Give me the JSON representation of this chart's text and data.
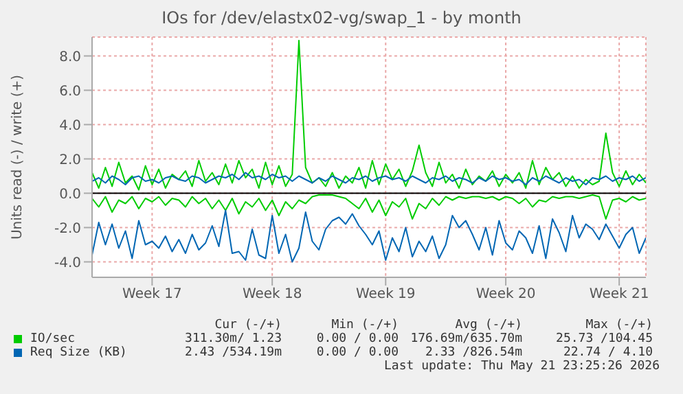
{
  "chart_data": {
    "type": "line",
    "title": "IOs for /dev/elastx02-vg/swap_1 - by month",
    "ylabel": "Units read (-) / write (+)",
    "categories": [
      null,
      null,
      null,
      null,
      null,
      null,
      null,
      null,
      null,
      "Week 17",
      null,
      null,
      null,
      null,
      null,
      null,
      null,
      null,
      null,
      null,
      null,
      null,
      null,
      null,
      null,
      null,
      null,
      "Week 18",
      null,
      null,
      null,
      null,
      null,
      null,
      null,
      null,
      null,
      null,
      null,
      null,
      null,
      null,
      null,
      null,
      "Week 19",
      null,
      null,
      null,
      null,
      null,
      null,
      null,
      null,
      null,
      null,
      null,
      null,
      null,
      null,
      null,
      null,
      null,
      "Week 20",
      null,
      null,
      null,
      null,
      null,
      null,
      null,
      null,
      null,
      null,
      null,
      null,
      null,
      null,
      null,
      null,
      "Week 21",
      null,
      null,
      null,
      null
    ],
    "ylim": [
      -4.9,
      9.1
    ],
    "yticks": [
      {
        "value": -4,
        "label": "-4.0"
      },
      {
        "value": -2,
        "label": "-2.0"
      },
      {
        "value": 0,
        "label": "0.0"
      },
      {
        "value": 2,
        "label": "2.0"
      },
      {
        "value": 4,
        "label": "4.0"
      },
      {
        "value": 6,
        "label": "6.0"
      },
      {
        "value": 8,
        "label": "8.0"
      }
    ],
    "grid": true,
    "legend": "bottom left",
    "ref_lines": [
      {
        "axis": "y",
        "value": 0,
        "color": "#000000"
      }
    ],
    "series": [
      {
        "color": "#00cc00",
        "values": [
          -0.3,
          -0.8,
          -0.2,
          -1.1,
          -0.4,
          -0.6,
          -0.2,
          -0.9,
          -0.3,
          -0.5,
          -0.2,
          -0.7,
          -0.3,
          -0.4,
          -0.8,
          -0.2,
          -0.6,
          -0.3,
          -0.9,
          -0.4,
          -1.0,
          -0.3,
          -1.2,
          -0.5,
          -0.8,
          -0.3,
          -1.0,
          -0.4,
          -1.3,
          -0.5,
          -0.9,
          -0.4,
          -0.6,
          -0.2,
          -0.1,
          -0.1,
          -0.1,
          -0.2,
          -0.3,
          -0.6,
          -0.9,
          -0.3,
          -1.1,
          -0.4,
          -1.3,
          -0.5,
          -0.8,
          -0.3,
          -1.5,
          -0.6,
          -0.9,
          -0.3,
          -0.7,
          -0.2,
          -0.4,
          -0.2,
          -0.3,
          -0.2,
          -0.2,
          -0.3,
          -0.2,
          -0.4,
          -0.2,
          -0.3,
          -0.6,
          -0.3,
          -0.8,
          -0.4,
          -0.5,
          -0.2,
          -0.3,
          -0.2,
          -0.2,
          -0.3,
          -0.2,
          -0.1,
          -0.2,
          -1.5,
          -0.4,
          -0.3,
          -0.5,
          -0.2,
          -0.4,
          -0.3
        ]
      },
      {
        "color": "#0066b3",
        "values": [
          -3.6,
          -1.7,
          -3.0,
          -1.8,
          -3.2,
          -2.2,
          -3.8,
          -1.6,
          -3.0,
          -2.8,
          -3.2,
          -2.5,
          -3.4,
          -2.7,
          -3.5,
          -2.4,
          -3.3,
          -2.9,
          -1.9,
          -3.1,
          -1.0,
          -3.5,
          -3.4,
          -3.9,
          -2.1,
          -3.6,
          -3.8,
          -1.3,
          -3.5,
          -2.4,
          -4.0,
          -3.2,
          -1.1,
          -2.8,
          -3.3,
          -2.1,
          -1.6,
          -1.4,
          -1.8,
          -1.2,
          -1.9,
          -2.4,
          -3.0,
          -2.2,
          -3.9,
          -2.6,
          -3.4,
          -2.0,
          -3.7,
          -2.8,
          -3.4,
          -2.5,
          -3.8,
          -3.0,
          -1.3,
          -2.0,
          -1.6,
          -2.4,
          -3.3,
          -2.0,
          -3.6,
          -1.6,
          -2.9,
          -3.3,
          -2.2,
          -2.6,
          -3.5,
          -1.9,
          -3.8,
          -1.5,
          -2.3,
          -3.4,
          -1.3,
          -2.6,
          -1.8,
          -2.1,
          -2.7,
          -1.8,
          -2.5,
          -3.2,
          -2.4,
          -2.0,
          -3.5,
          -2.6
        ]
      },
      {
        "name": "IO/sec",
        "color": "#00cc00",
        "values": [
          1.2,
          0.3,
          1.5,
          0.4,
          1.8,
          0.6,
          1.0,
          0.2,
          1.6,
          0.5,
          1.4,
          0.3,
          1.1,
          0.8,
          1.3,
          0.4,
          1.9,
          0.7,
          1.2,
          0.5,
          1.7,
          0.6,
          1.9,
          0.9,
          1.4,
          0.3,
          1.8,
          0.5,
          1.6,
          0.4,
          1.1,
          8.9,
          1.5,
          0.6,
          0.9,
          0.4,
          1.2,
          0.3,
          1.0,
          0.6,
          1.5,
          0.3,
          1.9,
          0.5,
          1.7,
          0.8,
          1.4,
          0.4,
          1.3,
          2.8,
          1.2,
          0.4,
          1.8,
          0.6,
          1.1,
          0.3,
          1.4,
          0.5,
          1.0,
          0.7,
          1.3,
          0.4,
          1.1,
          0.6,
          1.2,
          0.3,
          1.9,
          0.5,
          1.5,
          0.8,
          1.2,
          0.4,
          1.0,
          0.3,
          0.8,
          0.5,
          0.7,
          3.5,
          1.2,
          0.4,
          1.3,
          0.5,
          1.1,
          0.6
        ]
      },
      {
        "name": "Req Size (KB)",
        "color": "#0066b3",
        "values": [
          0.7,
          0.9,
          0.6,
          1.0,
          0.8,
          0.5,
          0.9,
          1.0,
          0.7,
          0.8,
          0.6,
          0.9,
          1.0,
          0.8,
          0.7,
          1.0,
          0.9,
          0.6,
          0.8,
          1.0,
          0.9,
          1.1,
          0.8,
          1.2,
          0.9,
          1.0,
          0.8,
          1.1,
          0.9,
          1.0,
          0.7,
          1.0,
          0.8,
          0.6,
          0.9,
          0.7,
          1.0,
          0.8,
          0.6,
          0.9,
          0.8,
          1.0,
          0.7,
          0.9,
          1.0,
          0.8,
          0.9,
          0.7,
          1.0,
          0.8,
          0.6,
          0.9,
          0.8,
          1.0,
          0.7,
          0.9,
          0.8,
          0.6,
          0.9,
          0.7,
          1.0,
          0.8,
          0.9,
          0.7,
          0.8,
          0.5,
          0.9,
          0.7,
          1.0,
          0.8,
          0.6,
          0.9,
          0.7,
          0.8,
          0.5,
          0.9,
          0.8,
          1.0,
          0.7,
          0.9,
          0.8,
          1.0,
          0.7,
          0.9
        ]
      }
    ],
    "annotations": [
      "Cur (-/+)",
      "Min (-/+)",
      "Avg (-/+)",
      "Max (-/+)",
      "311.30m/ 1.23",
      "0.00 / 0.00",
      "176.69m/635.70m",
      "25.73 /104.45",
      "2.43 /534.19m",
      "0.00 / 0.00",
      "2.33 /826.54m",
      "22.74 / 4.10",
      "Last update: Thu May 21 23:25:26 2026"
    ]
  }
}
